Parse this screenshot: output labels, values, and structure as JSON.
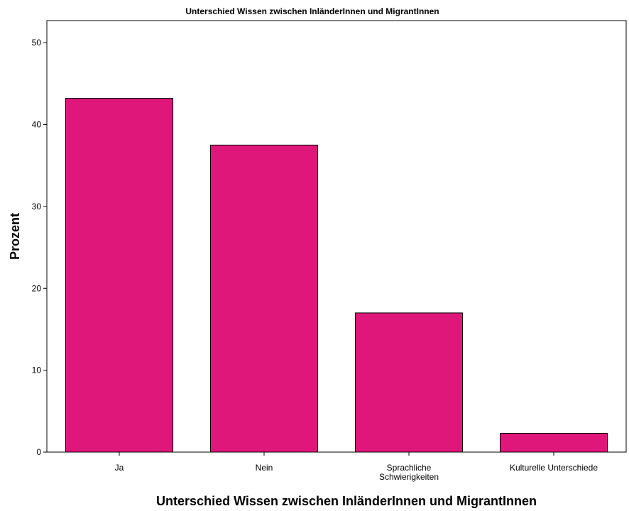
{
  "chart_data": {
    "type": "bar",
    "title": "Unterschied Wissen zwischen InländerInnen und MigrantInnen",
    "xlabel": "Unterschied Wissen zwischen InländerInnen und MigrantInnen",
    "ylabel": "Prozent",
    "categories": [
      "Ja",
      "Nein",
      "Sprachliche Schwierigkeiten",
      "Kulturelle Unterschiede"
    ],
    "category_label_lines": [
      [
        "Ja"
      ],
      [
        "Nein"
      ],
      [
        "Sprachliche",
        "Schwierigkeiten"
      ],
      [
        "Kulturelle Unterschiede"
      ]
    ],
    "values": [
      43.2,
      37.5,
      17.0,
      2.3
    ],
    "ylim": [
      0,
      52.7
    ],
    "yticks": [
      0,
      10,
      20,
      30,
      40,
      50
    ],
    "grid": false,
    "legend": "none",
    "colors": {
      "bar_fill": "#E0177A",
      "bar_stroke": "#000000",
      "axis": "#000000",
      "background": "#FFFFFF"
    }
  }
}
